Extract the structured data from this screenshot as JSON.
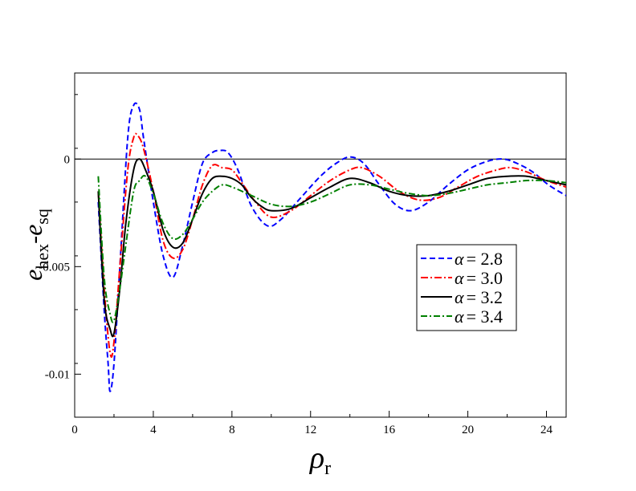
{
  "chart_data": {
    "type": "line",
    "title": "",
    "xlabel": {
      "main": "ρ",
      "sub": "r"
    },
    "ylabel": {
      "e1": "e",
      "sub1": "hex",
      "sep": "-",
      "e2": "e",
      "sub2": "sq"
    },
    "xlim": [
      0,
      25
    ],
    "ylim": [
      -0.012,
      0.004
    ],
    "xticks": [
      0,
      4,
      8,
      12,
      16,
      20,
      24
    ],
    "yticks": [
      {
        "value": -0.01,
        "label": "-0.01"
      },
      {
        "value": -0.005,
        "label": "-0.005"
      },
      {
        "value": 0,
        "label": "0"
      }
    ],
    "reference_line_y": 0,
    "grid": false,
    "legend_position": "right-center",
    "series": [
      {
        "name": "α = 2.8",
        "legend": {
          "greek": "α",
          "value": "= 2.8"
        },
        "color": "#0000ff",
        "dash": "7,4",
        "x": [
          1.2,
          1.5,
          1.7,
          1.8,
          2.0,
          2.3,
          2.7,
          3.0,
          3.3,
          3.5,
          4.0,
          4.5,
          5.0,
          5.5,
          6.0,
          6.5,
          7.0,
          7.4,
          7.8,
          8.3,
          9.0,
          9.8,
          10.5,
          11.5,
          12.5,
          13.3,
          14.0,
          14.7,
          15.5,
          16.3,
          17.1,
          18.0,
          19.0,
          20.0,
          21.0,
          21.8,
          22.5,
          23.3,
          24.1,
          25.0
        ],
        "y": [
          -0.002,
          -0.007,
          -0.0095,
          -0.0108,
          -0.0095,
          -0.005,
          0.001,
          0.0025,
          0.0023,
          0.001,
          -0.002,
          -0.0045,
          -0.0055,
          -0.004,
          -0.002,
          -0.0002,
          0.0003,
          0.0004,
          0.0003,
          -0.0005,
          -0.0022,
          -0.0031,
          -0.0028,
          -0.0018,
          -0.0008,
          -0.0002,
          0.0001,
          -0.0002,
          -0.0012,
          -0.0021,
          -0.0024,
          -0.002,
          -0.0012,
          -0.0005,
          -0.0001,
          0.0,
          -0.0002,
          -0.0006,
          -0.0012,
          -0.0017
        ]
      },
      {
        "name": "α = 3.0",
        "legend": {
          "greek": "α",
          "value": "= 3.0"
        },
        "color": "#ff0000",
        "dash": "9,3,2,3",
        "x": [
          1.2,
          1.5,
          1.8,
          2.0,
          2.3,
          2.7,
          3.0,
          3.2,
          3.5,
          4.0,
          4.5,
          5.0,
          5.5,
          6.0,
          6.5,
          7.0,
          7.5,
          8.0,
          8.5,
          9.2,
          10.0,
          11.0,
          12.0,
          13.0,
          14.0,
          14.6,
          15.5,
          16.5,
          17.5,
          18.5,
          19.5,
          20.5,
          21.5,
          22.2,
          23.0,
          24.0,
          25.0
        ],
        "y": [
          -0.0015,
          -0.006,
          -0.009,
          -0.0085,
          -0.005,
          -0.0005,
          0.001,
          0.0011,
          0.0005,
          -0.0015,
          -0.0038,
          -0.0046,
          -0.0042,
          -0.0028,
          -0.0012,
          -0.0003,
          -0.0004,
          -0.0005,
          -0.0011,
          -0.002,
          -0.0027,
          -0.0024,
          -0.0017,
          -0.001,
          -0.0005,
          -0.0004,
          -0.0008,
          -0.0015,
          -0.0019,
          -0.0018,
          -0.0013,
          -0.0008,
          -0.0005,
          -0.0004,
          -0.0006,
          -0.001,
          -0.0013
        ]
      },
      {
        "name": "α = 3.2",
        "legend": {
          "greek": "α",
          "value": "= 3.2"
        },
        "color": "#000000",
        "dash": "",
        "x": [
          1.2,
          1.5,
          1.8,
          2.0,
          2.3,
          2.6,
          3.0,
          3.3,
          3.6,
          4.0,
          4.5,
          5.0,
          5.5,
          6.0,
          6.5,
          7.0,
          7.5,
          8.0,
          8.5,
          9.0,
          9.5,
          10.0,
          11.0,
          12.0,
          13.0,
          14.0,
          15.0,
          16.0,
          17.0,
          18.0,
          19.0,
          20.0,
          21.0,
          22.0,
          23.0,
          24.0,
          25.0
        ],
        "y": [
          -0.0015,
          -0.0065,
          -0.0079,
          -0.0081,
          -0.006,
          -0.003,
          -0.0005,
          0.0,
          -0.0005,
          -0.0015,
          -0.0033,
          -0.0041,
          -0.0039,
          -0.0028,
          -0.0016,
          -0.0009,
          -0.0008,
          -0.0009,
          -0.0012,
          -0.0018,
          -0.0022,
          -0.0024,
          -0.0023,
          -0.0018,
          -0.0013,
          -0.0009,
          -0.0011,
          -0.0015,
          -0.0017,
          -0.0017,
          -0.0015,
          -0.0012,
          -0.0009,
          -0.0008,
          -0.0008,
          -0.001,
          -0.0012
        ]
      },
      {
        "name": "α = 3.4",
        "legend": {
          "greek": "α",
          "value": "= 3.4"
        },
        "color": "#008000",
        "dash": "8,3,2,3",
        "x": [
          1.2,
          1.5,
          1.8,
          2.0,
          2.3,
          2.6,
          3.0,
          3.3,
          3.6,
          4.0,
          4.5,
          5.0,
          5.5,
          6.0,
          6.5,
          7.0,
          7.5,
          8.0,
          9.0,
          10.0,
          11.0,
          12.0,
          13.0,
          14.0,
          15.0,
          16.0,
          17.0,
          18.0,
          19.0,
          20.0,
          21.0,
          22.0,
          23.0,
          24.0,
          25.0
        ],
        "y": [
          -0.0008,
          -0.0055,
          -0.0072,
          -0.0075,
          -0.006,
          -0.004,
          -0.0015,
          -0.001,
          -0.0008,
          -0.0016,
          -0.003,
          -0.0037,
          -0.0035,
          -0.0028,
          -0.002,
          -0.0015,
          -0.0012,
          -0.0013,
          -0.0017,
          -0.0021,
          -0.0022,
          -0.002,
          -0.0016,
          -0.0012,
          -0.0012,
          -0.0014,
          -0.0016,
          -0.0017,
          -0.0016,
          -0.0014,
          -0.0012,
          -0.0011,
          -0.001,
          -0.001,
          -0.0011
        ]
      }
    ]
  }
}
